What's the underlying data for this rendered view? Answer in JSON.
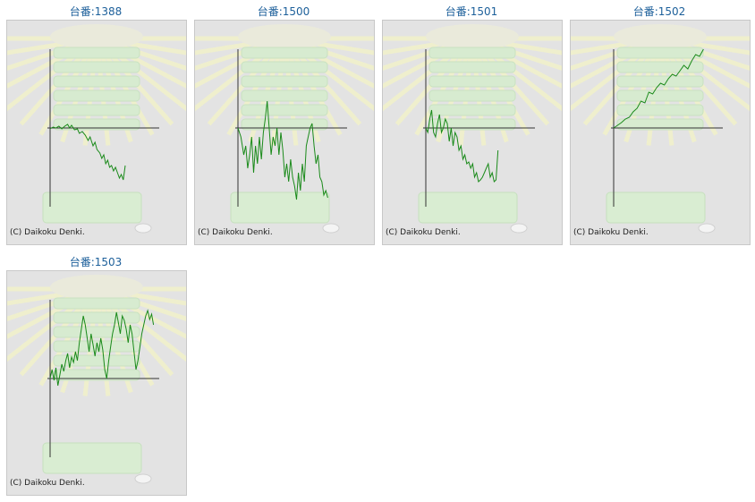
{
  "machines": [
    {
      "title": "台番:1388",
      "copyright": "(C) Daikoku Denki.",
      "graph": [
        [
          0,
          -1
        ],
        [
          3,
          1
        ],
        [
          6,
          0
        ],
        [
          9,
          2
        ],
        [
          12,
          -1
        ],
        [
          15,
          2
        ],
        [
          18,
          4
        ],
        [
          20,
          0
        ],
        [
          22,
          3
        ],
        [
          25,
          -2
        ],
        [
          28,
          -1
        ],
        [
          30,
          -6
        ],
        [
          33,
          -4
        ],
        [
          36,
          -8
        ],
        [
          39,
          -14
        ],
        [
          41,
          -10
        ],
        [
          44,
          -20
        ],
        [
          46,
          -16
        ],
        [
          48,
          -24
        ],
        [
          51,
          -28
        ],
        [
          53,
          -34
        ],
        [
          55,
          -30
        ],
        [
          57,
          -40
        ],
        [
          59,
          -36
        ],
        [
          61,
          -44
        ],
        [
          63,
          -42
        ],
        [
          65,
          -48
        ],
        [
          67,
          -44
        ],
        [
          69,
          -50
        ],
        [
          71,
          -56
        ],
        [
          73,
          -52
        ],
        [
          75,
          -58
        ],
        [
          77,
          -42
        ]
      ]
    },
    {
      "title": "台番:1500",
      "copyright": "(C) Daikoku Denki.",
      "graph": [
        [
          0,
          0
        ],
        [
          3,
          -10
        ],
        [
          6,
          -30
        ],
        [
          8,
          -20
        ],
        [
          10,
          -45
        ],
        [
          12,
          -30
        ],
        [
          14,
          -10
        ],
        [
          16,
          -50
        ],
        [
          18,
          -20
        ],
        [
          20,
          -40
        ],
        [
          22,
          -10
        ],
        [
          24,
          -35
        ],
        [
          26,
          -5
        ],
        [
          28,
          10
        ],
        [
          30,
          30
        ],
        [
          32,
          0
        ],
        [
          34,
          -30
        ],
        [
          36,
          -10
        ],
        [
          38,
          -20
        ],
        [
          40,
          0
        ],
        [
          42,
          -30
        ],
        [
          44,
          -5
        ],
        [
          46,
          -25
        ],
        [
          48,
          -55
        ],
        [
          50,
          -40
        ],
        [
          52,
          -60
        ],
        [
          54,
          -35
        ],
        [
          56,
          -55
        ],
        [
          58,
          -65
        ],
        [
          60,
          -80
        ],
        [
          62,
          -50
        ],
        [
          64,
          -70
        ],
        [
          66,
          -40
        ],
        [
          68,
          -60
        ],
        [
          70,
          -20
        ],
        [
          72,
          -10
        ],
        [
          74,
          0
        ],
        [
          76,
          5
        ],
        [
          78,
          -20
        ],
        [
          80,
          -40
        ],
        [
          82,
          -30
        ],
        [
          84,
          -55
        ],
        [
          86,
          -60
        ],
        [
          88,
          -75
        ],
        [
          90,
          -70
        ],
        [
          92,
          -78
        ]
      ]
    },
    {
      "title": "台番:1501",
      "copyright": "(C) Daikoku Denki.",
      "graph": [
        [
          0,
          0
        ],
        [
          2,
          -5
        ],
        [
          4,
          10
        ],
        [
          6,
          20
        ],
        [
          8,
          -5
        ],
        [
          10,
          -10
        ],
        [
          12,
          5
        ],
        [
          14,
          15
        ],
        [
          16,
          -5
        ],
        [
          18,
          0
        ],
        [
          20,
          10
        ],
        [
          22,
          5
        ],
        [
          24,
          -15
        ],
        [
          26,
          0
        ],
        [
          28,
          -20
        ],
        [
          30,
          -5
        ],
        [
          32,
          -10
        ],
        [
          34,
          -25
        ],
        [
          36,
          -20
        ],
        [
          38,
          -35
        ],
        [
          40,
          -30
        ],
        [
          42,
          -40
        ],
        [
          44,
          -38
        ],
        [
          46,
          -45
        ],
        [
          48,
          -40
        ],
        [
          50,
          -55
        ],
        [
          52,
          -50
        ],
        [
          54,
          -60
        ],
        [
          56,
          -58
        ],
        [
          58,
          -55
        ],
        [
          60,
          -50
        ],
        [
          62,
          -45
        ],
        [
          64,
          -40
        ],
        [
          66,
          -55
        ],
        [
          68,
          -50
        ],
        [
          70,
          -60
        ],
        [
          72,
          -58
        ],
        [
          74,
          -25
        ]
      ]
    },
    {
      "title": "台番:1502",
      "copyright": "(C) Daikoku Denki.",
      "graph": [
        [
          0,
          0
        ],
        [
          4,
          3
        ],
        [
          8,
          6
        ],
        [
          12,
          10
        ],
        [
          16,
          12
        ],
        [
          20,
          18
        ],
        [
          24,
          22
        ],
        [
          28,
          30
        ],
        [
          32,
          28
        ],
        [
          36,
          40
        ],
        [
          40,
          38
        ],
        [
          44,
          45
        ],
        [
          48,
          50
        ],
        [
          52,
          48
        ],
        [
          56,
          55
        ],
        [
          60,
          60
        ],
        [
          64,
          58
        ],
        [
          68,
          64
        ],
        [
          72,
          70
        ],
        [
          76,
          66
        ],
        [
          80,
          75
        ],
        [
          84,
          82
        ],
        [
          88,
          80
        ],
        [
          92,
          88
        ]
      ]
    },
    {
      "title": "台番:1503",
      "copyright": "(C) Daikoku Denki.",
      "graph": [
        [
          0,
          0
        ],
        [
          2,
          10
        ],
        [
          4,
          -2
        ],
        [
          6,
          12
        ],
        [
          8,
          -8
        ],
        [
          10,
          4
        ],
        [
          12,
          16
        ],
        [
          14,
          8
        ],
        [
          16,
          20
        ],
        [
          18,
          28
        ],
        [
          20,
          12
        ],
        [
          22,
          24
        ],
        [
          24,
          18
        ],
        [
          26,
          30
        ],
        [
          28,
          20
        ],
        [
          30,
          40
        ],
        [
          32,
          55
        ],
        [
          34,
          70
        ],
        [
          36,
          60
        ],
        [
          38,
          45
        ],
        [
          40,
          30
        ],
        [
          42,
          50
        ],
        [
          44,
          38
        ],
        [
          46,
          25
        ],
        [
          48,
          40
        ],
        [
          50,
          30
        ],
        [
          52,
          45
        ],
        [
          54,
          32
        ],
        [
          56,
          10
        ],
        [
          58,
          0
        ],
        [
          60,
          20
        ],
        [
          62,
          35
        ],
        [
          64,
          50
        ],
        [
          66,
          60
        ],
        [
          68,
          74
        ],
        [
          70,
          62
        ],
        [
          72,
          50
        ],
        [
          74,
          70
        ],
        [
          76,
          65
        ],
        [
          78,
          55
        ],
        [
          80,
          40
        ],
        [
          82,
          60
        ],
        [
          84,
          50
        ],
        [
          86,
          30
        ],
        [
          88,
          10
        ],
        [
          90,
          20
        ],
        [
          92,
          35
        ],
        [
          94,
          50
        ],
        [
          96,
          60
        ],
        [
          98,
          70
        ],
        [
          100,
          76
        ],
        [
          102,
          66
        ],
        [
          104,
          72
        ],
        [
          106,
          60
        ]
      ]
    }
  ]
}
